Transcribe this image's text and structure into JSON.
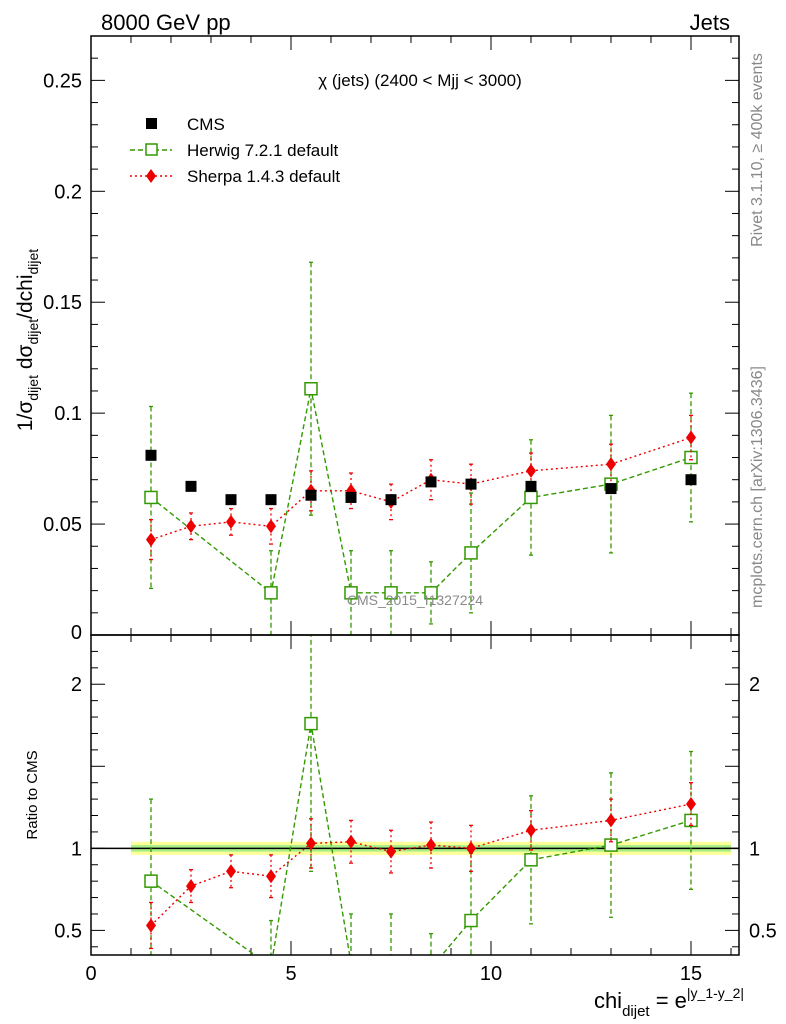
{
  "header": {
    "left": "8000 GeV pp",
    "right": "Jets"
  },
  "side_labels": {
    "rivet": "Rivet 3.1.10, ≥ 400k events",
    "mcplots": "mcplots.cern.ch [arXiv:1306.3436]"
  },
  "watermark": "CMS_2015_I1327224",
  "chart_data": {
    "type": "scatter",
    "title": "χ (jets) (2400 < Mjj < 3000)",
    "ylabel": "1/σdijet dσdijet/dchidijet",
    "ratio_ylabel": "Ratio to CMS",
    "xlabel": "chidijet = e|y_1-y_2|",
    "xlim": [
      0,
      16.2
    ],
    "ylim": [
      0,
      0.27
    ],
    "ratio_ylim": [
      0.35,
      2.3
    ],
    "xticks": [
      0,
      5,
      10,
      15
    ],
    "yticks": [
      0.05,
      0.1,
      0.15,
      0.2,
      0.25
    ],
    "ratio_yticks": [
      0.5,
      1,
      2
    ],
    "legend_position": "top-left",
    "reference_band": {
      "x": [
        1,
        16
      ],
      "inner_halfwidth": 0.02,
      "outer_halfwidth": 0.04,
      "inner_color": "#aaee88",
      "outer_color": "#ffff99"
    },
    "series": [
      {
        "name": "CMS",
        "style": "data",
        "color": "#000000",
        "x": [
          1.5,
          2.5,
          3.5,
          4.5,
          5.5,
          6.5,
          7.5,
          8.5,
          9.5,
          11,
          13,
          15
        ],
        "y": [
          0.081,
          0.067,
          0.061,
          0.061,
          0.063,
          0.062,
          0.061,
          0.069,
          0.068,
          0.067,
          0.066,
          0.07
        ]
      },
      {
        "name": "Herwig 7.2.1 default",
        "style": "dashed-square",
        "color": "#339900",
        "x": [
          1.5,
          4.5,
          5.5,
          6.5,
          7.5,
          8.5,
          9.5,
          11,
          13,
          15
        ],
        "y": [
          0.062,
          0.019,
          0.111,
          0.019,
          0.019,
          0.019,
          0.037,
          0.062,
          0.068,
          0.08
        ],
        "err": [
          0.041,
          0.019,
          0.057,
          0.019,
          0.019,
          0.014,
          0.027,
          0.026,
          0.031,
          0.029
        ],
        "ratio": [
          0.8,
          0.28,
          1.76,
          0.3,
          0.3,
          0.27,
          0.56,
          0.93,
          1.02,
          1.17
        ],
        "ratio_err": [
          0.5,
          0.28,
          0.9,
          0.3,
          0.3,
          0.21,
          0.41,
          0.39,
          0.44,
          0.42
        ]
      },
      {
        "name": "Sherpa 1.4.3 default",
        "style": "dotted-diamond",
        "color": "#ee0000",
        "x": [
          1.5,
          2.5,
          3.5,
          4.5,
          5.5,
          6.5,
          7.5,
          8.5,
          9.5,
          11,
          13,
          15
        ],
        "y": [
          0.043,
          0.049,
          0.051,
          0.049,
          0.065,
          0.065,
          0.06,
          0.07,
          0.068,
          0.074,
          0.077,
          0.089
        ],
        "err": [
          0.009,
          0.006,
          0.006,
          0.008,
          0.009,
          0.008,
          0.008,
          0.009,
          0.009,
          0.008,
          0.009,
          0.01
        ],
        "ratio": [
          0.53,
          0.77,
          0.86,
          0.83,
          1.03,
          1.04,
          0.98,
          1.02,
          1.0,
          1.11,
          1.17,
          1.27
        ],
        "ratio_err": [
          0.14,
          0.1,
          0.1,
          0.13,
          0.15,
          0.13,
          0.13,
          0.14,
          0.14,
          0.12,
          0.13,
          0.13
        ]
      }
    ]
  }
}
